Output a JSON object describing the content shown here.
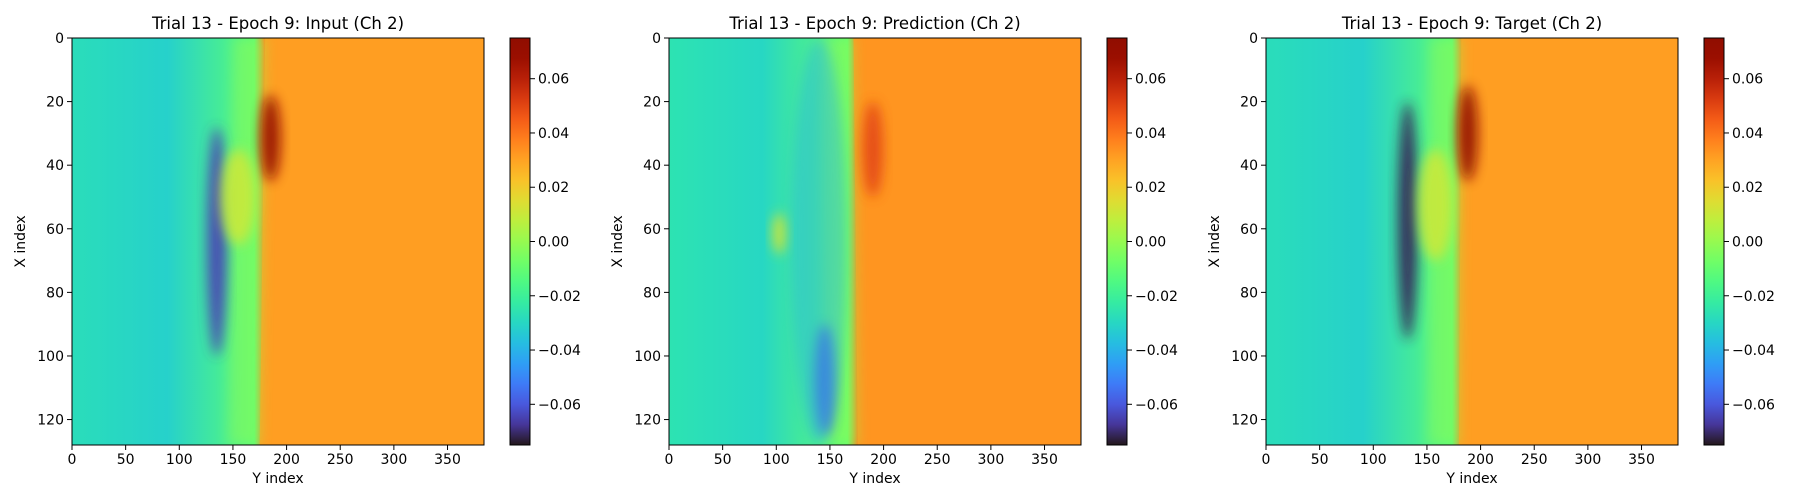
{
  "chart_data": [
    {
      "type": "heatmap",
      "title": "Trial 13 - Epoch 9: Input (Ch 2)",
      "xlabel": "Y index",
      "ylabel": "X index",
      "xlim": [
        0,
        384
      ],
      "ylim": [
        128,
        0
      ],
      "xticks": [
        0,
        50,
        100,
        150,
        200,
        250,
        300,
        350
      ],
      "yticks": [
        0,
        20,
        40,
        60,
        80,
        100,
        120
      ],
      "colormap": "turbo",
      "colorbar": {
        "vmin": -0.075,
        "vmax": 0.075,
        "ticks": [
          0.06,
          0.04,
          0.02,
          0.0,
          -0.02,
          -0.04,
          -0.06
        ],
        "tick_labels": [
          "0.06",
          "0.04",
          "0.02",
          "0.00",
          "−0.02",
          "−0.04",
          "−0.06"
        ]
      },
      "field": {
        "front_y": [
          180,
          175
        ],
        "left_value": -0.032,
        "right_value": 0.031,
        "features": [
          {
            "kind": "negative-streak",
            "y": 135,
            "x": [
              28,
              100
            ],
            "value": -0.065
          },
          {
            "kind": "positive-peak",
            "y": 185,
            "x": [
              18,
              45
            ],
            "value": 0.07
          },
          {
            "kind": "positive-patch",
            "y": 155,
            "x": [
              35,
              65
            ],
            "value": 0.01
          }
        ]
      }
    },
    {
      "type": "heatmap",
      "title": "Trial 13 - Epoch 9: Prediction (Ch 2)",
      "xlabel": "Y index",
      "ylabel": "X index",
      "xlim": [
        0,
        384
      ],
      "ylim": [
        128,
        0
      ],
      "xticks": [
        0,
        50,
        100,
        150,
        200,
        250,
        300,
        350
      ],
      "yticks": [
        0,
        20,
        40,
        60,
        80,
        100,
        120
      ],
      "colormap": "turbo",
      "colorbar": {
        "vmin": -0.075,
        "vmax": 0.075,
        "ticks": [
          0.06,
          0.04,
          0.02,
          0.0,
          -0.02,
          -0.04,
          -0.06
        ],
        "tick_labels": [
          "0.06",
          "0.04",
          "0.02",
          "0.00",
          "−0.02",
          "−0.04",
          "−0.06"
        ]
      },
      "field": {
        "front_y": [
          172,
          176
        ],
        "left_value": -0.03,
        "right_value": 0.033,
        "features": [
          {
            "kind": "negative-streak",
            "y": 145,
            "x": [
              90,
              125
            ],
            "value": -0.06
          },
          {
            "kind": "positive-blob",
            "y": 103,
            "x": [
              55,
              68
            ],
            "value": 0.012
          },
          {
            "kind": "positive-peak",
            "y": 190,
            "x": [
              20,
              50
            ],
            "value": 0.05
          },
          {
            "kind": "wavy-band",
            "y": 140,
            "x": [
              0,
              128
            ],
            "value": -0.04
          }
        ]
      }
    },
    {
      "type": "heatmap",
      "title": "Trial 13 - Epoch 9: Target (Ch 2)",
      "xlabel": "Y index",
      "ylabel": "X index",
      "xlim": [
        0,
        384
      ],
      "ylim": [
        128,
        0
      ],
      "xticks": [
        0,
        50,
        100,
        150,
        200,
        250,
        300,
        350
      ],
      "yticks": [
        0,
        20,
        40,
        60,
        80,
        100,
        120
      ],
      "colormap": "turbo",
      "colorbar": {
        "vmin": -0.075,
        "vmax": 0.075,
        "ticks": [
          0.06,
          0.04,
          0.02,
          0.0,
          -0.02,
          -0.04,
          -0.06
        ],
        "tick_labels": [
          "0.06",
          "0.04",
          "0.02",
          "0.00",
          "−0.02",
          "−0.04",
          "−0.06"
        ]
      },
      "field": {
        "front_y": [
          182,
          180
        ],
        "left_value": -0.032,
        "right_value": 0.031,
        "features": [
          {
            "kind": "negative-streak",
            "y": 132,
            "x": [
              20,
              95
            ],
            "value": -0.072
          },
          {
            "kind": "positive-peak",
            "y": 188,
            "x": [
              15,
              45
            ],
            "value": 0.072
          },
          {
            "kind": "positive-patch",
            "y": 158,
            "x": [
              35,
              70
            ],
            "value": 0.01
          }
        ]
      }
    }
  ]
}
